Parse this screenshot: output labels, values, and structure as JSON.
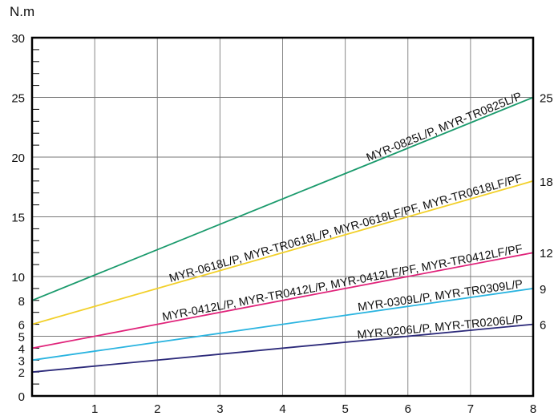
{
  "chart_data": {
    "type": "line",
    "ylabel": "N.m",
    "xlim": [
      0,
      8
    ],
    "ylim": [
      0,
      30
    ],
    "grid": true,
    "x_ticks": [
      "1",
      "2",
      "3",
      "4",
      "5",
      "6",
      "7",
      "8"
    ],
    "y_ticks_left": [
      "0",
      "2",
      "3",
      "4",
      "5",
      "6",
      "8",
      "10",
      "15",
      "20",
      "25",
      "30"
    ],
    "y_ticks_left_values": [
      0,
      2,
      3,
      4,
      5,
      6,
      8,
      10,
      15,
      20,
      25,
      30
    ],
    "series": [
      {
        "name": "MYR-0825L/P, MYR-TR0825L/P",
        "x": [
          0,
          8
        ],
        "y": [
          8,
          25
        ],
        "color": "#1a9a6c",
        "end_label": "25"
      },
      {
        "name": "MYR-0618L/P, MYR-TR0618L/P, MYR-0618LF/PF, MYR-TR0618LF/PF",
        "x": [
          0,
          8
        ],
        "y": [
          6,
          18
        ],
        "color": "#f2d02a",
        "end_label": "18"
      },
      {
        "name": "MYR-0412L/P, MYR-TR0412L/P, MYR-0412LF/PF, MYR-TR0412LF/PF",
        "x": [
          0,
          8
        ],
        "y": [
          4,
          12
        ],
        "color": "#e0237a",
        "end_label": "12"
      },
      {
        "name": "MYR-0309L/P, MYR-TR0309L/P",
        "x": [
          0,
          8
        ],
        "y": [
          3,
          9
        ],
        "color": "#2ab4e0",
        "end_label": "9"
      },
      {
        "name": "MYR-0206L/P, MYR-TR0206L/P",
        "x": [
          0,
          8
        ],
        "y": [
          2,
          6
        ],
        "color": "#2c2a7a",
        "end_label": "6"
      }
    ]
  }
}
